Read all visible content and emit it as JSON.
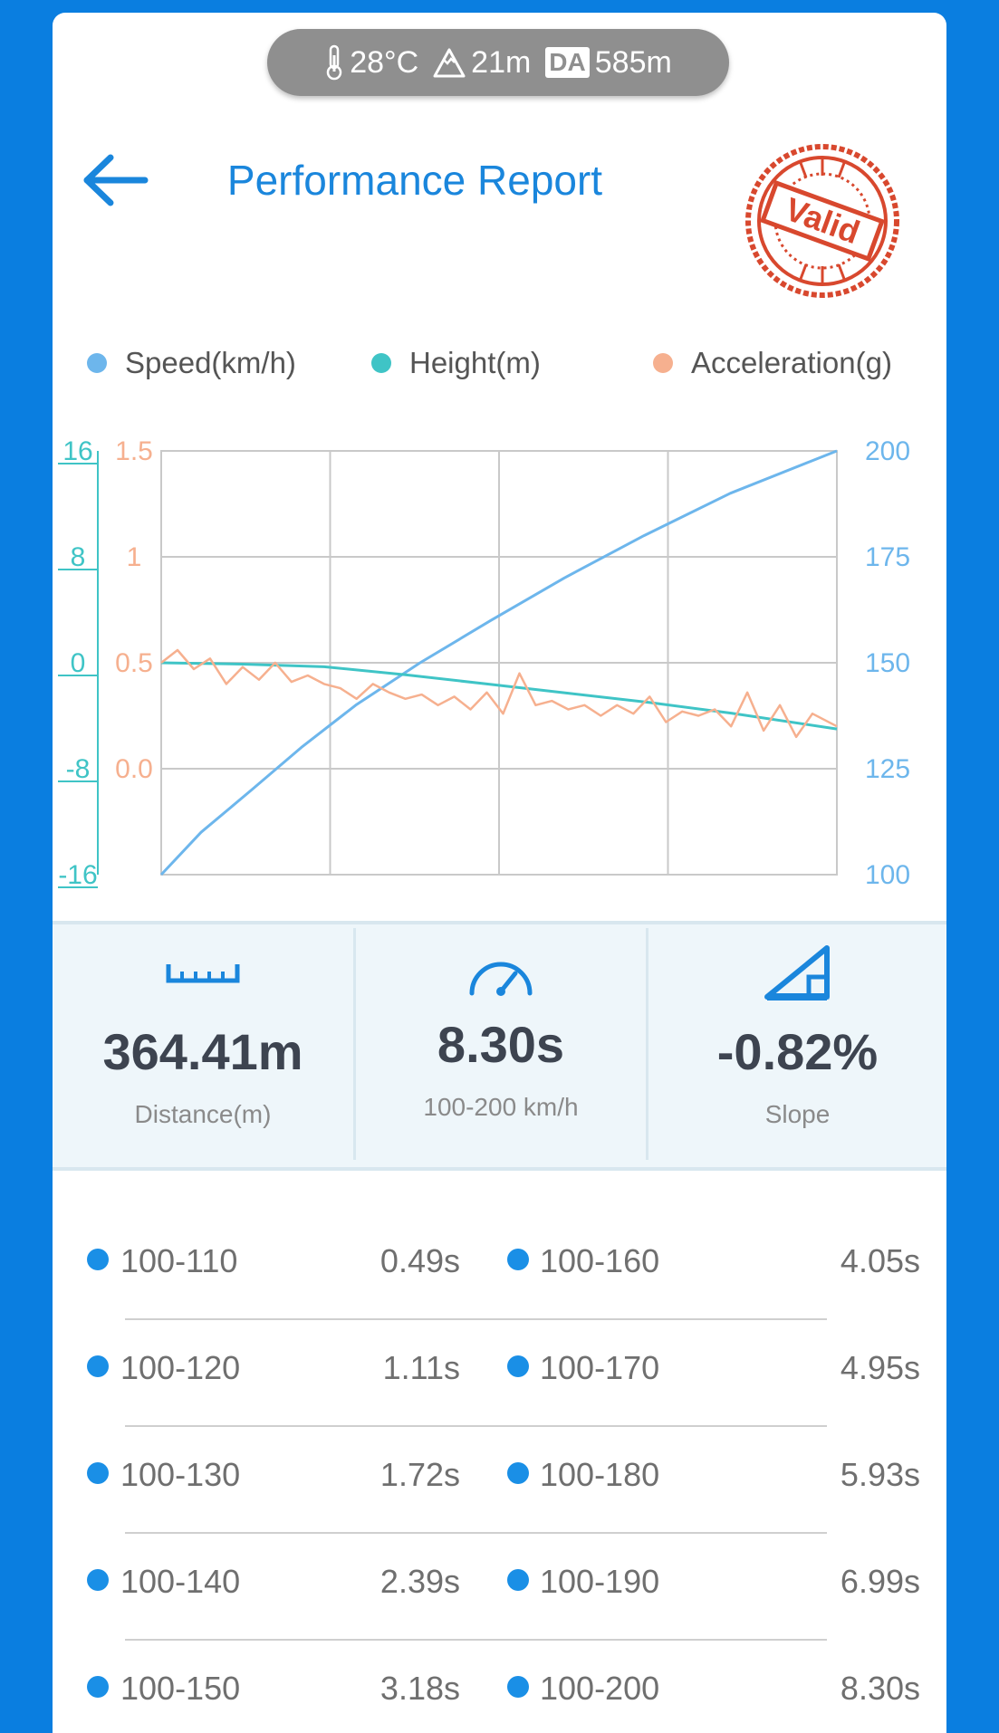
{
  "status": {
    "temperature": "28°C",
    "altitude": "21m",
    "da_label": "DA",
    "density_altitude": "585m"
  },
  "header": {
    "title": "Performance Report",
    "stamp_text": "Valid"
  },
  "legend": [
    {
      "label": "Speed(km/h)",
      "color": "#6db6ec"
    },
    {
      "label": "Height(m)",
      "color": "#3fc4c6"
    },
    {
      "label": "Acceleration(g)",
      "color": "#f6b08f"
    }
  ],
  "chart_data": {
    "type": "line",
    "x_range": [
      0,
      8.3
    ],
    "axes": {
      "height": {
        "ticks": [
          "16",
          "8",
          "0",
          "-8",
          "-16"
        ],
        "range": [
          -16,
          16
        ],
        "color": "#3fc4c6"
      },
      "acceleration": {
        "ticks": [
          "1.5",
          "1",
          "0.5",
          "0.0"
        ],
        "range": [
          -0.5,
          1.5
        ],
        "color": "#f6b08f"
      },
      "speed": {
        "ticks": [
          "200",
          "175",
          "150",
          "125",
          "100"
        ],
        "range": [
          100,
          200
        ],
        "color": "#6db6ec"
      }
    },
    "grid": true,
    "series": [
      {
        "name": "Speed(km/h)",
        "axis": "speed",
        "x": [
          0,
          0.49,
          1.11,
          1.72,
          2.39,
          3.18,
          4.05,
          4.95,
          5.93,
          6.99,
          8.3
        ],
        "y": [
          100,
          110,
          120,
          130,
          140,
          150,
          160,
          170,
          180,
          190,
          200
        ]
      },
      {
        "name": "Height(m)",
        "axis": "height",
        "x": [
          0,
          1,
          2,
          3,
          4,
          5,
          6,
          7,
          8.3
        ],
        "y": [
          0,
          -0.1,
          -0.3,
          -0.9,
          -1.6,
          -2.3,
          -3.0,
          -3.8,
          -5.0
        ]
      },
      {
        "name": "Acceleration(g)",
        "axis": "acceleration",
        "x": [
          0,
          0.2,
          0.4,
          0.6,
          0.8,
          1.0,
          1.2,
          1.4,
          1.6,
          1.8,
          2.0,
          2.2,
          2.4,
          2.6,
          2.8,
          3.0,
          3.2,
          3.4,
          3.6,
          3.8,
          4.0,
          4.2,
          4.4,
          4.6,
          4.8,
          5.0,
          5.2,
          5.4,
          5.6,
          5.8,
          6.0,
          6.2,
          6.4,
          6.6,
          6.8,
          7.0,
          7.2,
          7.4,
          7.6,
          7.8,
          8.0,
          8.3
        ],
        "y": [
          0.5,
          0.56,
          0.47,
          0.52,
          0.4,
          0.48,
          0.42,
          0.5,
          0.41,
          0.44,
          0.4,
          0.38,
          0.33,
          0.4,
          0.36,
          0.33,
          0.35,
          0.3,
          0.34,
          0.28,
          0.36,
          0.26,
          0.45,
          0.3,
          0.32,
          0.28,
          0.3,
          0.25,
          0.3,
          0.26,
          0.34,
          0.22,
          0.27,
          0.25,
          0.28,
          0.2,
          0.36,
          0.18,
          0.3,
          0.15,
          0.26,
          0.2
        ]
      }
    ]
  },
  "stats": [
    {
      "icon": "ruler-icon",
      "value": "364.41m",
      "label": "Distance(m)"
    },
    {
      "icon": "speedometer-icon",
      "value": "8.30s",
      "label": "100-200 km/h"
    },
    {
      "icon": "slope-icon",
      "value": "-0.82%",
      "label": "Slope"
    }
  ],
  "splits": [
    {
      "left_label": "100-110",
      "left_value": "0.49s",
      "right_label": "100-160",
      "right_value": "4.05s"
    },
    {
      "left_label": "100-120",
      "left_value": "1.11s",
      "right_label": "100-170",
      "right_value": "4.95s"
    },
    {
      "left_label": "100-130",
      "left_value": "1.72s",
      "right_label": "100-180",
      "right_value": "5.93s"
    },
    {
      "left_label": "100-140",
      "left_value": "2.39s",
      "right_label": "100-190",
      "right_value": "6.99s"
    },
    {
      "left_label": "100-150",
      "left_value": "3.18s",
      "right_label": "100-200",
      "right_value": "8.30s"
    }
  ]
}
